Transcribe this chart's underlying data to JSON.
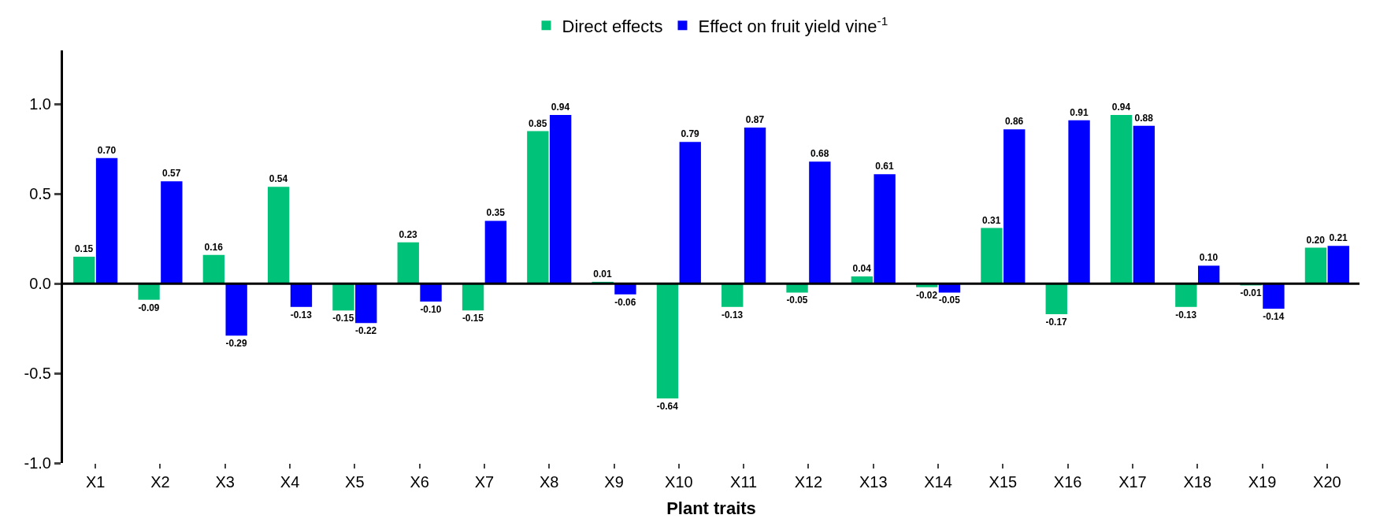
{
  "chart_data": {
    "type": "bar",
    "xlabel": "Plant traits",
    "categories": [
      "X1",
      "X2",
      "X3",
      "X4",
      "X5",
      "X6",
      "X7",
      "X8",
      "X9",
      "X10",
      "X11",
      "X12",
      "X13",
      "X14",
      "X15",
      "X16",
      "X17",
      "X18",
      "X19",
      "X20"
    ],
    "series": [
      {
        "name": "Direct effects",
        "color": "#00c278",
        "values": [
          0.15,
          -0.09,
          0.16,
          0.54,
          -0.15,
          0.23,
          -0.15,
          0.85,
          0.01,
          -0.64,
          -0.13,
          -0.05,
          0.04,
          -0.02,
          0.31,
          -0.17,
          0.94,
          -0.13,
          -0.01,
          0.2
        ],
        "value_labels": [
          "0.15",
          "-0.09",
          "0.16",
          "0.54",
          "-0.15",
          "0.23",
          "-0.15",
          "0.85",
          "0.01",
          "-0.64",
          "-0.13",
          "-0.05",
          "0.04",
          "-0.02",
          "0.31",
          "-0.17",
          "0.94",
          "-0.13",
          "-0.01",
          "0.20"
        ]
      },
      {
        "name": "Effect on fruit yield vine$^{-1}$",
        "color": "#0000ff",
        "values": [
          0.7,
          0.57,
          -0.29,
          -0.13,
          -0.22,
          -0.1,
          0.35,
          0.94,
          -0.06,
          0.79,
          0.87,
          0.68,
          0.61,
          -0.05,
          0.86,
          0.91,
          0.88,
          0.1,
          -0.14,
          0.21
        ],
        "value_labels": [
          "0.70",
          "0.57",
          "-0.29",
          "-0.13",
          "-0.22",
          "-0.10",
          "0.35",
          "0.94",
          "-0.06",
          "0.79",
          "0.87",
          "0.68",
          "0.61",
          "-0.05",
          "0.86",
          "0.91",
          "0.88",
          "0.10",
          "-0.14",
          "0.21"
        ]
      }
    ],
    "ylim": [
      -1.0,
      1.3
    ],
    "yticks": [
      {
        "value": -1.0,
        "label": "-1.0"
      },
      {
        "value": -0.5,
        "label": "-0.5"
      },
      {
        "value": 0.0,
        "label": "0.0"
      },
      {
        "value": 0.5,
        "label": "0.5"
      },
      {
        "value": 1.0,
        "label": "1.0"
      }
    ],
    "ref_lines": [
      {
        "axis": "y",
        "value": 0.0,
        "color": "#000000"
      }
    ],
    "legend": "top"
  }
}
